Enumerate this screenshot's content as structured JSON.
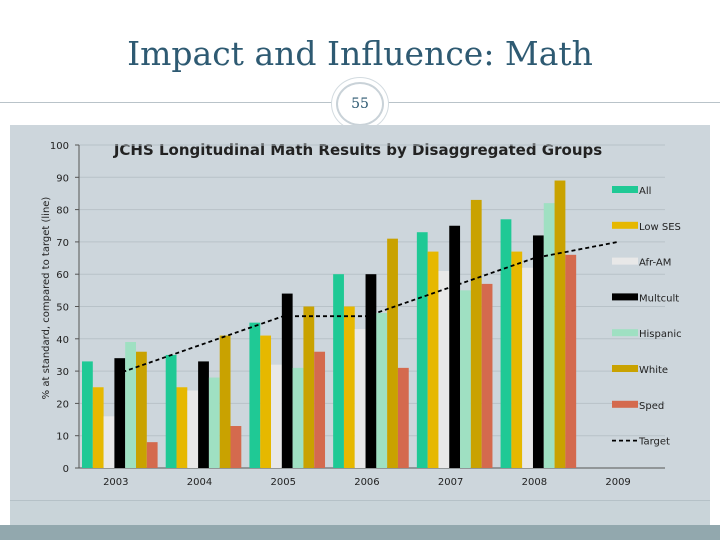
{
  "slide": {
    "title": "Impact and Influence: Math",
    "page_number": "55"
  },
  "chart_data": {
    "type": "bar",
    "title": "JCHS Longitudinal Math Results by Disaggregated Groups",
    "ylabel": "% at standard, compared to target (line)",
    "xlabel": "",
    "ylim": [
      0,
      100
    ],
    "yticks": [
      0,
      10,
      20,
      30,
      40,
      50,
      60,
      70,
      80,
      90,
      100
    ],
    "categories": [
      "2003",
      "2004",
      "2005",
      "2006",
      "2007",
      "2008",
      "2009"
    ],
    "series": [
      {
        "name": "All",
        "color": "#1fc995",
        "values": [
          33,
          35,
          45,
          60,
          73,
          77,
          null
        ]
      },
      {
        "name": "Low SES",
        "color": "#e6b800",
        "values": [
          25,
          25,
          41,
          50,
          67,
          67,
          null
        ]
      },
      {
        "name": "Afr-AM",
        "color": "#e8e8e8",
        "values": [
          16,
          24,
          32,
          43,
          61,
          62,
          null
        ]
      },
      {
        "name": "Multcult",
        "color": "#000000",
        "values": [
          34,
          33,
          54,
          60,
          75,
          72,
          null
        ]
      },
      {
        "name": "Hispanic",
        "color": "#9fe0c2",
        "values": [
          39,
          28,
          31,
          48,
          55,
          82,
          null
        ]
      },
      {
        "name": "White",
        "color": "#c9a200",
        "values": [
          36,
          41,
          50,
          71,
          83,
          89,
          null
        ]
      },
      {
        "name": "Sped",
        "color": "#d46a4e",
        "values": [
          8,
          13,
          36,
          31,
          57,
          66,
          null
        ]
      }
    ],
    "target": {
      "name": "Target",
      "color": "#000000",
      "values": [
        29,
        38,
        47,
        47,
        56,
        65,
        70
      ]
    },
    "legend_position": "right"
  }
}
